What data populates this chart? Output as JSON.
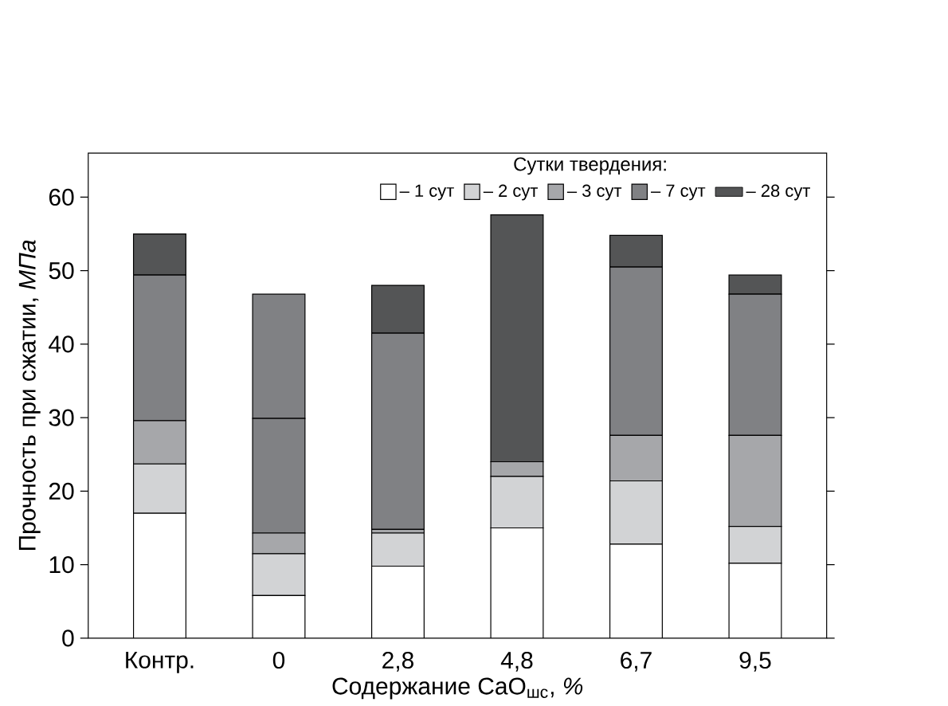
{
  "chart_data": {
    "type": "bar",
    "stacked": true,
    "xlabel": "Содержание CaO$_{шс}$, *%*",
    "ylabel": "Прочность при сжатии, *МПа*",
    "legend_title": "Сутки твердения:",
    "legend": "top",
    "categories": [
      "Контр.",
      "0",
      "2,8",
      "4,8",
      "6,7",
      "9,5"
    ],
    "ylim": [
      0,
      66
    ],
    "yticks": [
      0,
      10,
      20,
      30,
      40,
      50,
      60
    ],
    "series": [
      {
        "name": "– 1 сут",
        "color": "#ffffff",
        "values": [
          17,
          5.8,
          9.8,
          15,
          12.8,
          10.2
        ]
      },
      {
        "name": "– 2 сут",
        "color": "#d2d3d5",
        "values": [
          6.7,
          5.7,
          4.5,
          7,
          8.6,
          5.0
        ]
      },
      {
        "name": "– 3 сут",
        "color": "#a6a7aa",
        "values": [
          5.9,
          2.8,
          0.5,
          2,
          6.2,
          12.4
        ]
      },
      {
        "name": "– 7 сут",
        "color": "#808184",
        "values": [
          19.8,
          15.6,
          26.7,
          0,
          22.9,
          19.2
        ]
      },
      {
        "name": "– 28 сут",
        "color": "#545556",
        "colors": [
          "#545556",
          "#808184",
          "#545556",
          "#545556",
          "#545556",
          "#545556"
        ],
        "values": [
          5.6,
          16.9,
          6.5,
          33.6,
          4.3,
          2.6
        ]
      }
    ]
  }
}
